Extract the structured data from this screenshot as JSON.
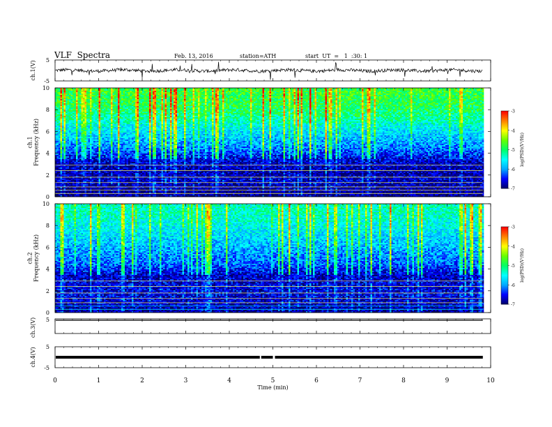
{
  "header": {
    "title": "VLF  Spectra",
    "date": "Feb. 13, 2016",
    "station": "station=ATH",
    "start": "start  UT  =   1  :30: 1"
  },
  "chart_data": [
    {
      "type": "line",
      "panel": "ch1-waveform",
      "ylabel": "ch.1(V)",
      "ylim": [
        -5,
        5
      ],
      "y_ticks": [
        "5",
        "-5"
      ],
      "xlim": [
        0,
        10
      ],
      "baseline": 0,
      "data_end_min": 9.82
    },
    {
      "type": "heatmap",
      "panel": "ch1-spectrogram",
      "ylabel": "ch.1\nFrequency  (kHz)",
      "ylim": [
        0,
        10
      ],
      "y_ticks": [
        "0",
        "2",
        "4",
        "6",
        "8",
        "10"
      ],
      "xlim": [
        0,
        10
      ],
      "data_end_min": 9.82,
      "colorbar": {
        "label": "log(PSD)(V²/Hz)",
        "range": [
          -7,
          -3
        ],
        "ticks": [
          "-3",
          "-4",
          "-5",
          "-6",
          "-7"
        ]
      },
      "profile_by_freq_khz": [
        {
          "f": 0.5,
          "level": -6.9
        },
        {
          "f": 1.5,
          "level": -6.7
        },
        {
          "f": 2.5,
          "level": -6.8
        },
        {
          "f": 3.5,
          "level": -6.6
        },
        {
          "f": 4.5,
          "level": -6.1
        },
        {
          "f": 5.5,
          "level": -5.8
        },
        {
          "f": 6.5,
          "level": -5.5
        },
        {
          "f": 7.5,
          "level": -5.1
        },
        {
          "f": 8.5,
          "level": -4.9
        },
        {
          "f": 9.5,
          "level": -4.8
        }
      ]
    },
    {
      "type": "heatmap",
      "panel": "ch2-spectrogram",
      "ylabel": "ch.2\nFrequency  (kHz)",
      "ylim": [
        0,
        10
      ],
      "y_ticks": [
        "0",
        "2",
        "4",
        "6",
        "8",
        "10"
      ],
      "xlim": [
        0,
        10
      ],
      "data_end_min": 9.82,
      "colorbar": {
        "label": "log(PSD)(V²/Hz)",
        "range": [
          -7,
          -3
        ],
        "ticks": [
          "-3",
          "-4",
          "-5",
          "-6",
          "-7"
        ]
      },
      "profile_by_freq_khz": [
        {
          "f": 0.5,
          "level": -6.8
        },
        {
          "f": 1.5,
          "level": -6.6
        },
        {
          "f": 2.5,
          "level": -6.6
        },
        {
          "f": 3.5,
          "level": -6.7
        },
        {
          "f": 4.5,
          "level": -6.2
        },
        {
          "f": 5.5,
          "level": -6.0
        },
        {
          "f": 6.5,
          "level": -5.8
        },
        {
          "f": 7.5,
          "level": -5.6
        },
        {
          "f": 8.5,
          "level": -5.4
        },
        {
          "f": 9.5,
          "level": -5.3
        }
      ]
    },
    {
      "type": "line",
      "panel": "ch3-waveform",
      "ylabel": "ch.3(V)",
      "ylim": [
        -5,
        5
      ],
      "y_ticks": [
        "5"
      ],
      "xlim": [
        0,
        10
      ],
      "baseline": 5,
      "data_end_min": 9.82
    },
    {
      "type": "line",
      "panel": "ch4-waveform",
      "ylabel": "ch.4(V)",
      "ylim": [
        -5,
        5
      ],
      "y_ticks": [
        "5",
        "-5"
      ],
      "xlim": [
        0,
        10
      ],
      "baseline": 0,
      "data_end_min": 9.82
    }
  ],
  "x_axis": {
    "label": "Time  (min)",
    "ticks": [
      "0",
      "1",
      "2",
      "3",
      "4",
      "5",
      "6",
      "7",
      "8",
      "9",
      "10"
    ]
  },
  "colors": {
    "colormap": [
      "#000066",
      "#0000ff",
      "#00a8ff",
      "#00ffff",
      "#00ff66",
      "#66ff00",
      "#ffff00",
      "#ff8000",
      "#ff0000",
      "#ffffff"
    ]
  }
}
